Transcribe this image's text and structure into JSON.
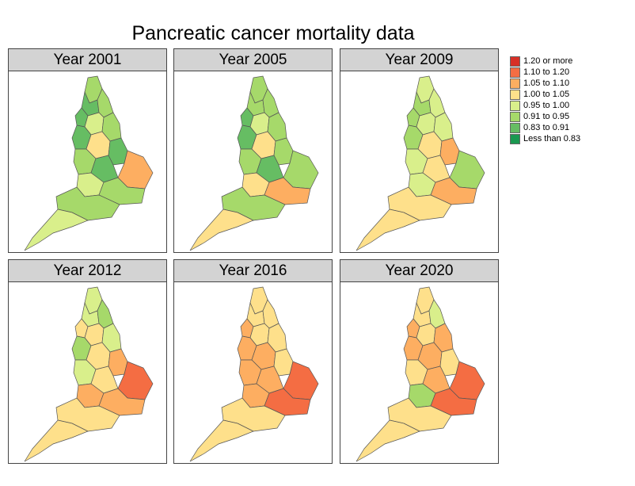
{
  "title": "Pancreatic cancer mortality data",
  "panels": [
    {
      "label": "Year 2001",
      "c": [
        "#a6d96a",
        "#66bd63",
        "#a6d96a",
        "#66bd63",
        "#d9ef8b",
        "#a6d96a",
        "#66bd63",
        "#fee08b",
        "#66bd63",
        "#a6d96a",
        "#66bd63",
        "#fdae61",
        "#d9ef8b",
        "#a6d96a",
        "#a6d96a",
        "#d9ef8b"
      ]
    },
    {
      "label": "Year 2005",
      "c": [
        "#a6d96a",
        "#a6d96a",
        "#a6d96a",
        "#66bd63",
        "#d9ef8b",
        "#a6d96a",
        "#66bd63",
        "#fee08b",
        "#a6d96a",
        "#a6d96a",
        "#66bd63",
        "#a6d96a",
        "#fee08b",
        "#fdae61",
        "#a6d96a",
        "#fee08b"
      ]
    },
    {
      "label": "Year 2009",
      "c": [
        "#d9ef8b",
        "#a6d96a",
        "#d9ef8b",
        "#a6d96a",
        "#d9ef8b",
        "#d9ef8b",
        "#a6d96a",
        "#fee08b",
        "#fdae61",
        "#d9ef8b",
        "#fee08b",
        "#a6d96a",
        "#d9ef8b",
        "#fdae61",
        "#fee08b",
        "#fee08b"
      ]
    },
    {
      "label": "Year 2012",
      "c": [
        "#d9ef8b",
        "#d9ef8b",
        "#a6d96a",
        "#fee08b",
        "#fee08b",
        "#d9ef8b",
        "#a6d96a",
        "#fee08b",
        "#fdae61",
        "#d9ef8b",
        "#fee08b",
        "#f46d43",
        "#fdae61",
        "#fdae61",
        "#fee08b",
        "#fee08b"
      ]
    },
    {
      "label": "Year 2016",
      "c": [
        "#fee08b",
        "#fee08b",
        "#fee08b",
        "#fdae61",
        "#fee08b",
        "#fee08b",
        "#fdae61",
        "#fdae61",
        "#fee08b",
        "#fdae61",
        "#fdae61",
        "#f46d43",
        "#fdae61",
        "#f46d43",
        "#fee08b",
        "#fee08b"
      ]
    },
    {
      "label": "Year 2020",
      "c": [
        "#fee08b",
        "#fee08b",
        "#d9ef8b",
        "#fdae61",
        "#fee08b",
        "#fdae61",
        "#fdae61",
        "#fdae61",
        "#fee08b",
        "#fee08b",
        "#fdae61",
        "#f46d43",
        "#a6d96a",
        "#f46d43",
        "#fee08b",
        "#fee08b"
      ]
    }
  ],
  "legend": [
    {
      "label": "1.20 or more",
      "color": "#d73027"
    },
    {
      "label": "1.10 to 1.20",
      "color": "#f46d43"
    },
    {
      "label": "1.05 to 1.10",
      "color": "#fdae61"
    },
    {
      "label": "1.00 to 1.05",
      "color": "#fee08b"
    },
    {
      "label": "0.95 to 1.00",
      "color": "#d9ef8b"
    },
    {
      "label": "0.91 to 0.95",
      "color": "#a6d96a"
    },
    {
      "label": "0.83 to 0.91",
      "color": "#66bd63"
    },
    {
      "label": "Less than 0.83",
      "color": "#1a9850"
    }
  ]
}
